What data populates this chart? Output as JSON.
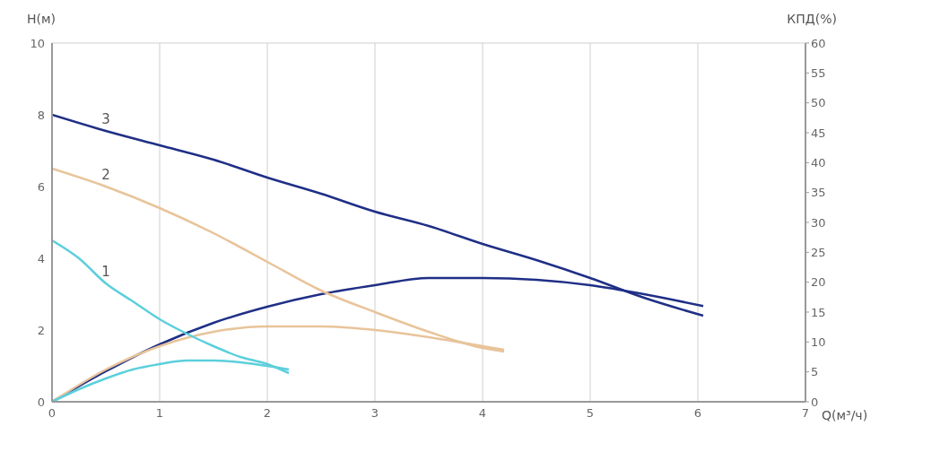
{
  "chart_data": {
    "type": "line",
    "ylabel": "H(м)",
    "y2label": "КПД(%)",
    "xlabel": "Q(м³/ч)",
    "xlim": [
      0,
      7
    ],
    "xticks": [
      0,
      1,
      2,
      3,
      4,
      5,
      6,
      7
    ],
    "ylim": [
      0,
      10
    ],
    "yticks": [
      0,
      2,
      4,
      6,
      8,
      10
    ],
    "y2lim": [
      0,
      60
    ],
    "y2ticks": [
      0,
      5,
      10,
      15,
      20,
      25,
      30,
      35,
      40,
      45,
      50,
      55,
      60
    ],
    "grid": true,
    "series": [
      {
        "name": "3",
        "color": "#1f2f86",
        "x": [
          0,
          0.5,
          1,
          1.5,
          2,
          2.5,
          3,
          3.5,
          4,
          4.5,
          5,
          5.5,
          6.05
        ],
        "values": [
          8,
          7.55,
          7.15,
          6.75,
          6.25,
          5.8,
          5.3,
          4.9,
          4.4,
          3.95,
          3.45,
          2.9,
          2.4
        ]
      },
      {
        "color": "#1f2f86",
        "axis": "y2",
        "x": [
          0,
          0.5,
          1,
          1.5,
          2,
          2.5,
          3,
          3.5,
          4,
          4.5,
          5,
          5.5,
          6.05
        ],
        "values": [
          0,
          5.1,
          9.6,
          13.2,
          15.9,
          18,
          19.5,
          20.7,
          20.7,
          20.4,
          19.5,
          18,
          16
        ]
      },
      {
        "name": "2",
        "color": "#e8c49a",
        "x": [
          0,
          0.5,
          1,
          1.5,
          2,
          2.5,
          3,
          3.5,
          4,
          4.2
        ],
        "values": [
          6.5,
          6,
          5.4,
          4.7,
          3.9,
          3.1,
          2.5,
          1.95,
          1.5,
          1.4
        ]
      },
      {
        "color": "#e8c49a",
        "axis": "y2",
        "x": [
          0,
          0.5,
          1,
          1.5,
          2,
          2.5,
          3,
          3.5,
          4,
          4.2
        ],
        "values": [
          0,
          5.4,
          9.3,
          11.7,
          12.6,
          12.6,
          12,
          10.8,
          9.3,
          8.7
        ]
      },
      {
        "name": "1",
        "color": "#5ccfdc",
        "x": [
          0,
          0.25,
          0.5,
          0.75,
          1,
          1.25,
          1.5,
          1.75,
          2,
          2.2
        ],
        "values": [
          4.5,
          4,
          3.3,
          2.8,
          2.3,
          1.9,
          1.55,
          1.25,
          1.05,
          0.8
        ]
      },
      {
        "color": "#5ccfdc",
        "axis": "y2",
        "x": [
          0,
          0.25,
          0.5,
          0.75,
          1,
          1.25,
          1.5,
          1.75,
          2,
          2.2
        ],
        "values": [
          0,
          2.1,
          3.9,
          5.4,
          6.3,
          6.9,
          6.9,
          6.6,
          6,
          5.4
        ]
      }
    ]
  }
}
